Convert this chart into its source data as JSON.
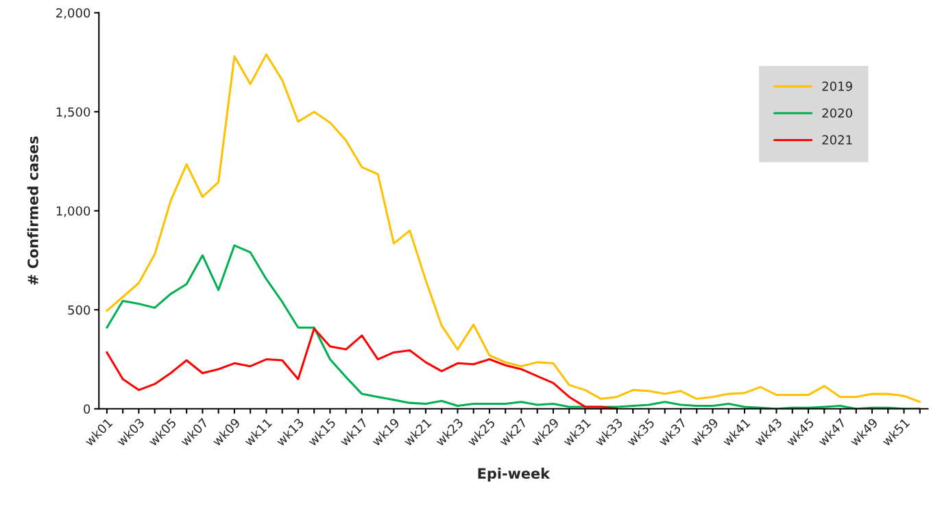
{
  "chart_data": {
    "type": "line",
    "xlabel": "Epi-week",
    "ylabel": "# Confirmed cases",
    "categories": [
      "wk01",
      null,
      "wk03",
      null,
      "wk05",
      null,
      "wk07",
      null,
      "wk09",
      null,
      "wk11",
      null,
      "wk13",
      null,
      "wk15",
      null,
      "wk17",
      null,
      "wk19",
      null,
      "wk21",
      null,
      "wk23",
      null,
      "wk25",
      null,
      "wk27",
      null,
      "wk29",
      null,
      "wk31",
      null,
      "wk33",
      null,
      "wk35",
      null,
      "wk37",
      null,
      "wk39",
      null,
      "wk41",
      null,
      "wk43",
      null,
      "wk45",
      null,
      "wk47",
      null,
      "wk49",
      null,
      "wk51",
      null
    ],
    "series": [
      {
        "name": "2019",
        "color": "#ffc000",
        "values": [
          495,
          565,
          635,
          780,
          1050,
          1235,
          1070,
          1145,
          1780,
          1640,
          1790,
          1660,
          1450,
          1500,
          1445,
          1355,
          1220,
          1185,
          835,
          900,
          650,
          420,
          300,
          425,
          270,
          235,
          215,
          235,
          230,
          120,
          95,
          50,
          60,
          95,
          90,
          75,
          90,
          50,
          60,
          75,
          80,
          110,
          70,
          70,
          70,
          115,
          60,
          60,
          75,
          75,
          65,
          35
        ]
      },
      {
        "name": "2020",
        "color": "#00b050",
        "values": [
          410,
          545,
          530,
          510,
          580,
          630,
          775,
          600,
          825,
          790,
          655,
          540,
          410,
          410,
          250,
          160,
          75,
          60,
          45,
          30,
          25,
          40,
          15,
          25,
          25,
          25,
          35,
          20,
          25,
          10,
          10,
          10,
          10,
          15,
          20,
          35,
          20,
          15,
          15,
          25,
          10,
          5,
          0,
          5,
          5,
          10,
          15,
          0,
          5,
          5,
          0,
          0
        ]
      },
      {
        "name": "2021",
        "color": "#ff0000",
        "values": [
          285,
          150,
          95,
          125,
          180,
          245,
          180,
          200,
          230,
          215,
          250,
          245,
          150,
          405,
          315,
          300,
          370,
          250,
          285,
          295,
          235,
          190,
          230,
          225,
          250,
          220,
          200,
          165,
          130,
          60,
          10,
          10,
          0,
          null,
          null,
          null,
          null,
          null,
          null,
          null,
          null,
          null,
          null,
          null,
          null,
          null,
          null,
          null,
          null,
          null,
          null,
          null
        ]
      }
    ],
    "ylim": [
      0,
      2000
    ],
    "yticks": [
      {
        "value": 0,
        "label": "0"
      },
      {
        "value": 500,
        "label": "500"
      },
      {
        "value": 1000,
        "label": "1,000"
      },
      {
        "value": 1500,
        "label": "1,500"
      },
      {
        "value": 2000,
        "label": "2,000"
      }
    ],
    "grid": false,
    "legend": "top right",
    "marker": "none",
    "line_style": "solid"
  }
}
